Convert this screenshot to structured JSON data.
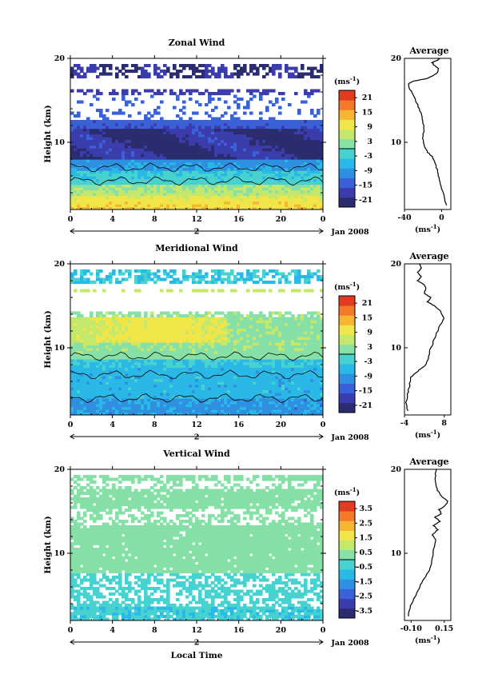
{
  "chart_data": [
    {
      "type": "heatmap",
      "title": "Zonal Wind",
      "ylabel": "Height (km)",
      "y_ticks": [
        "10",
        "20"
      ],
      "x_ticks": [
        "0",
        "4",
        "8",
        "12",
        "16",
        "20",
        "0"
      ],
      "xlim": [
        0,
        24
      ],
      "ylim": [
        2,
        20
      ],
      "day_label": "2",
      "date_label": "Jan 2008",
      "colorbar": {
        "unit_label": "(ms",
        "unit_sup": "-1",
        "unit_close": ")",
        "ticks": [
          "21",
          "15",
          "9",
          "3",
          "-3",
          "-9",
          "-15",
          "-21"
        ],
        "range": [
          -24,
          24
        ]
      },
      "average": {
        "title": "Average",
        "xlim": [
          -40,
          10
        ],
        "x_ticks": [
          "-40",
          "0"
        ],
        "y_ticks": [
          "10",
          "20"
        ],
        "xlabel": "(ms",
        "xlabel_sup": "-1",
        "xlabel_close": ")",
        "profile": [
          [
            5,
            2.5
          ],
          [
            3,
            3.5
          ],
          [
            0,
            4.5
          ],
          [
            -2,
            5.5
          ],
          [
            -4,
            6.5
          ],
          [
            -7,
            7.5
          ],
          [
            -10,
            8.3
          ],
          [
            -15,
            8.8
          ],
          [
            -18,
            9.5
          ],
          [
            -20,
            10.5
          ],
          [
            -19,
            11.5
          ],
          [
            -20,
            12.5
          ],
          [
            -22,
            13.5
          ],
          [
            -26,
            14.5
          ],
          [
            -30,
            15.5
          ],
          [
            -34,
            16.3
          ],
          [
            -36,
            17.0
          ],
          [
            -30,
            17.3
          ],
          [
            -15,
            17.6
          ],
          [
            -5,
            18.2
          ],
          [
            -3,
            18.8
          ],
          [
            -8,
            19.2
          ],
          [
            -10,
            19.5
          ],
          [
            -4,
            19.8
          ],
          [
            -2,
            20
          ]
        ]
      }
    },
    {
      "type": "heatmap",
      "title": "Meridional Wind",
      "ylabel": "Height (km)",
      "y_ticks": [
        "10",
        "20"
      ],
      "x_ticks": [
        "0",
        "4",
        "8",
        "12",
        "16",
        "20",
        "0"
      ],
      "xlim": [
        0,
        24
      ],
      "ylim": [
        2,
        20
      ],
      "day_label": "2",
      "date_label": "Jan 2008",
      "colorbar": {
        "unit_label": "(ms",
        "unit_sup": "-1",
        "unit_close": ")",
        "ticks": [
          "21",
          "15",
          "9",
          "3",
          "-3",
          "-9",
          "-15",
          "-21"
        ],
        "range": [
          -24,
          24
        ]
      },
      "average": {
        "title": "Average",
        "xlim": [
          -4,
          10
        ],
        "x_ticks": [
          "-4",
          "8"
        ],
        "y_ticks": [
          "10",
          "20"
        ],
        "xlabel": "(ms",
        "xlabel_sup": "-1",
        "xlabel_close": ")",
        "profile": [
          [
            -3,
            2.5
          ],
          [
            -3.5,
            3.5
          ],
          [
            -3,
            4.5
          ],
          [
            -2.5,
            5.5
          ],
          [
            -2,
            6.5
          ],
          [
            0,
            7.2
          ],
          [
            2,
            7.8
          ],
          [
            3,
            8.5
          ],
          [
            3.5,
            9.5
          ],
          [
            4.5,
            10.5
          ],
          [
            5.5,
            11.5
          ],
          [
            6.5,
            12.5
          ],
          [
            8,
            13.5
          ],
          [
            7,
            14.3
          ],
          [
            5,
            15
          ],
          [
            3,
            15.5
          ],
          [
            4,
            16
          ],
          [
            2,
            16.5
          ],
          [
            2.5,
            17
          ],
          [
            2,
            17.5
          ],
          [
            0,
            18
          ],
          [
            1,
            18.5
          ],
          [
            0,
            19
          ],
          [
            1,
            19.5
          ],
          [
            0.5,
            20
          ]
        ]
      }
    },
    {
      "type": "heatmap",
      "title": "Vertical Wind",
      "ylabel": "Height (km)",
      "xlabel": "Local Time",
      "y_ticks": [
        "10",
        "20"
      ],
      "x_ticks": [
        "0",
        "4",
        "8",
        "12",
        "16",
        "20",
        "0"
      ],
      "xlim": [
        0,
        24
      ],
      "ylim": [
        2,
        20
      ],
      "day_label": "2",
      "date_label": "Jan 2008",
      "colorbar": {
        "unit_label": "(ms",
        "unit_sup": "-1",
        "unit_close": ")",
        "ticks": [
          "3.5",
          "2.5",
          "1.5",
          "0.5",
          "-0.5",
          "-1.5",
          "-2.5",
          "-3.5"
        ],
        "range": [
          -4,
          4
        ]
      },
      "average": {
        "title": "Average",
        "xlim": [
          -0.15,
          0.2
        ],
        "x_ticks": [
          "-0.10",
          "0.15"
        ],
        "y_ticks": [
          "10",
          "20"
        ],
        "xlabel": "(ms",
        "xlabel_sup": "-1",
        "xlabel_close": ")",
        "profile": [
          [
            -0.12,
            2.5
          ],
          [
            -0.11,
            3.5
          ],
          [
            -0.08,
            4.5
          ],
          [
            -0.05,
            5.5
          ],
          [
            -0.02,
            6.5
          ],
          [
            0.02,
            7.5
          ],
          [
            0.05,
            8.5
          ],
          [
            0.06,
            9.5
          ],
          [
            0.07,
            10.5
          ],
          [
            0.09,
            11.5
          ],
          [
            0.06,
            12.2
          ],
          [
            0.1,
            12.8
          ],
          [
            0.07,
            13.3
          ],
          [
            0.12,
            13.8
          ],
          [
            0.08,
            14.3
          ],
          [
            0.13,
            14.7
          ],
          [
            0.11,
            15.2
          ],
          [
            0.16,
            15.7
          ],
          [
            0.18,
            16.2
          ],
          [
            0.13,
            16.8
          ],
          [
            0.1,
            17.5
          ],
          [
            0.09,
            18.2
          ],
          [
            0.08,
            19
          ],
          [
            0.09,
            20
          ]
        ]
      }
    }
  ]
}
